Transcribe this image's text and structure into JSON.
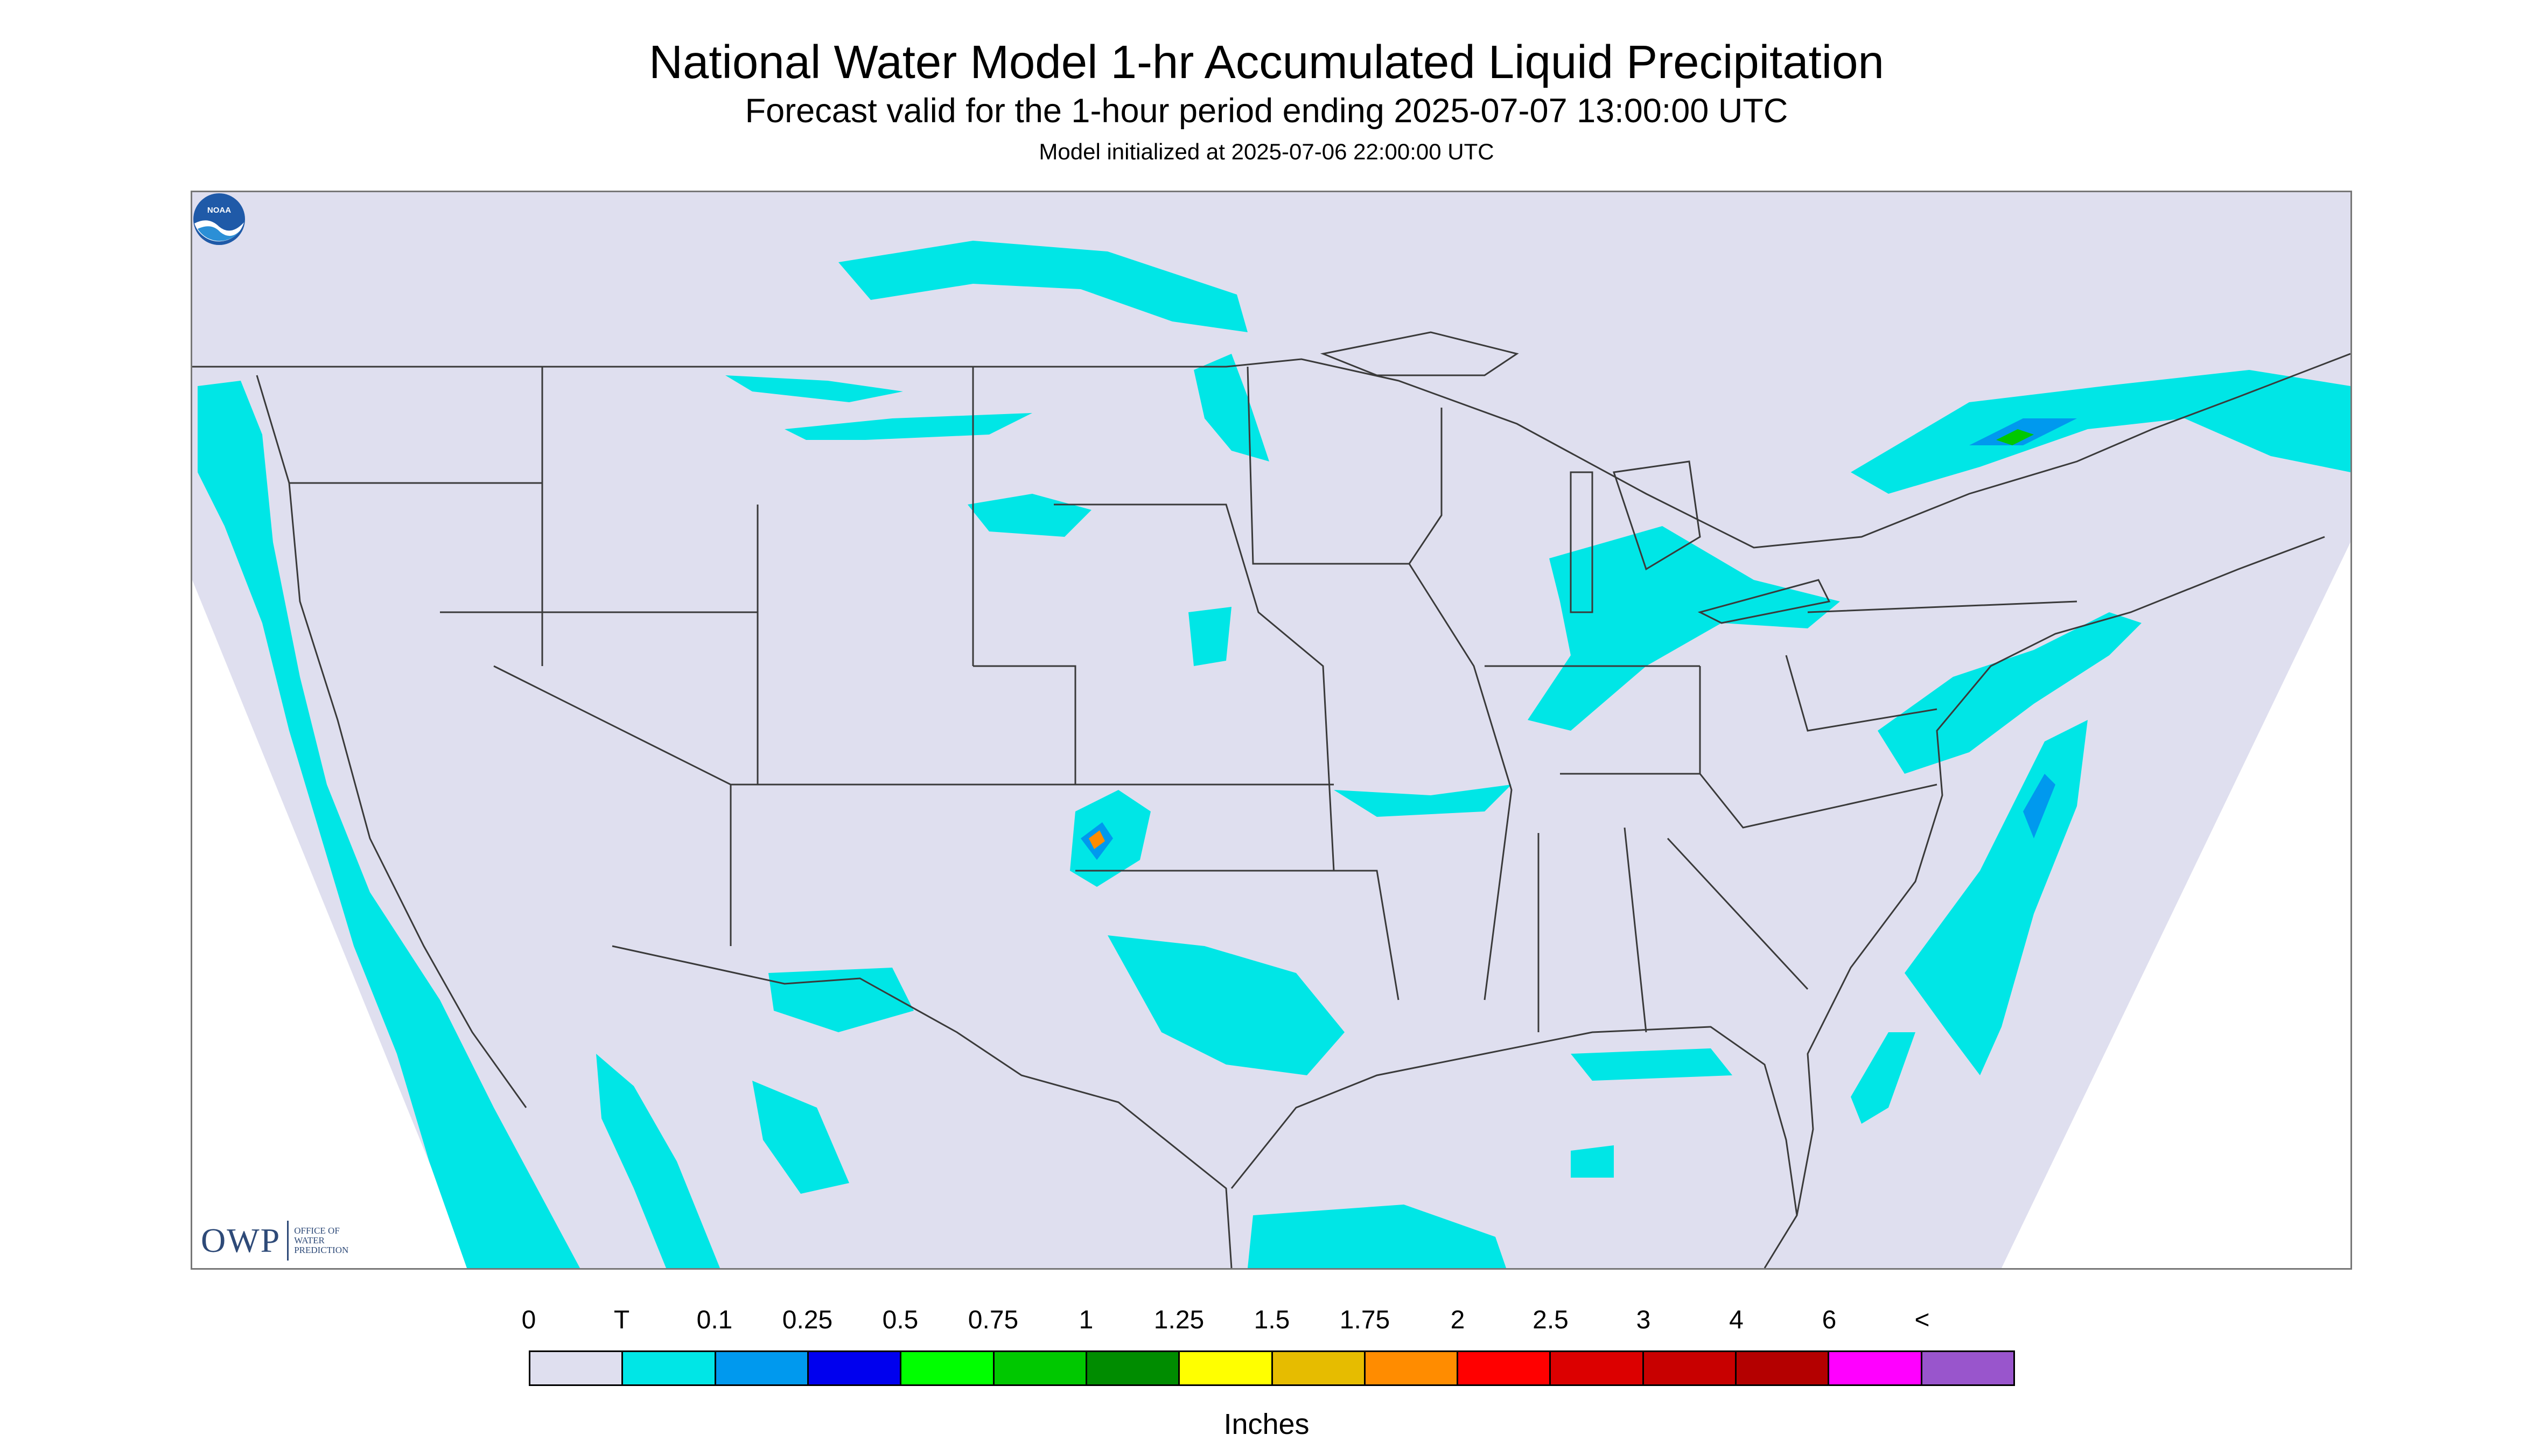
{
  "header": {
    "title": "National Water Model 1-hr Accumulated Liquid Precipitation",
    "subtitle": "Forecast valid for the 1-hour period ending 2025-07-07 13:00:00 UTC",
    "init_line": "Model initialized at 2025-07-06 22:00:00 UTC"
  },
  "map": {
    "region": "Continental United States",
    "background_color": "#dfdfef",
    "boundary_color": "#3a3a3a",
    "precip_areas": [
      {
        "location": "Pacific coast / offshore",
        "category": "T"
      },
      {
        "location": "Southern Canada prairies",
        "category": "T"
      },
      {
        "location": "Northern Plains",
        "category": "T"
      },
      {
        "location": "Texas panhandle / Oklahoma",
        "category": "T"
      },
      {
        "location": "Texas panhandle core",
        "category": "1.5"
      },
      {
        "location": "Central Texas",
        "category": "T"
      },
      {
        "location": "Great Lakes",
        "category": "T"
      },
      {
        "location": "Southern Quebec",
        "category": "0.25"
      },
      {
        "location": "Mid-Atlantic offshore",
        "category": "0.25"
      },
      {
        "location": "Gulf of Mexico",
        "category": "T"
      },
      {
        "location": "Northern Mexico",
        "category": "T"
      }
    ]
  },
  "logos": {
    "owp_mark": "OWP",
    "owp_sub": [
      "OFFICE OF",
      "WATER",
      "PREDICTION"
    ],
    "noaa_text": "NOAA"
  },
  "legend": {
    "labels": [
      "0",
      "T",
      "0.1",
      "0.25",
      "0.5",
      "0.75",
      "1",
      "1.25",
      "1.5",
      "1.75",
      "2",
      "2.5",
      "3",
      "4",
      "6",
      "<"
    ],
    "colors": [
      "#dfdfef",
      "#00e6e6",
      "#0099ee",
      "#0000ee",
      "#00ff00",
      "#00c800",
      "#008c00",
      "#ffff00",
      "#e6bc00",
      "#ff8c00",
      "#ff0000",
      "#dc0000",
      "#c80000",
      "#b40000",
      "#ff00ff",
      "#9955cc"
    ],
    "units": "Inches"
  }
}
